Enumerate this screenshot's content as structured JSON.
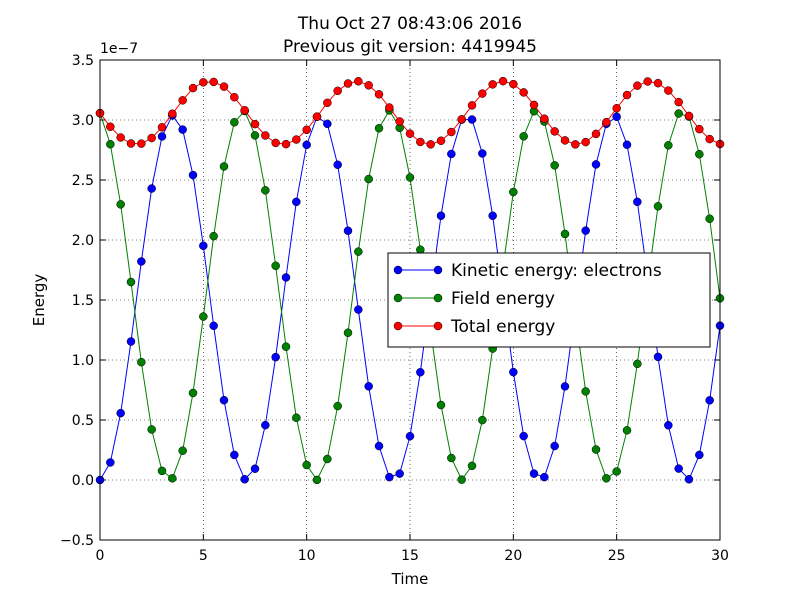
{
  "chart_data": {
    "type": "line",
    "title": "Thu Oct 27 08:43:06 2016",
    "subtitle": "Previous git version: 4419945",
    "xlabel": "Time",
    "ylabel": "Energy",
    "y_offset_label": "1e−7",
    "x": [
      0,
      0.5,
      1,
      1.5,
      2,
      2.5,
      3,
      3.5,
      4,
      4.5,
      5,
      5.5,
      6,
      6.5,
      7,
      7.5,
      8,
      8.5,
      9,
      9.5,
      10,
      10.5,
      11,
      11.5,
      12,
      12.5,
      13,
      13.5,
      14,
      14.5,
      15,
      15.5,
      16,
      16.5,
      17,
      17.5,
      18,
      18.5,
      19,
      19.5,
      20,
      20.5,
      21,
      21.5,
      22,
      22.5,
      23,
      23.5,
      24,
      24.5,
      25,
      25.5,
      26,
      26.5,
      27,
      27.5,
      28,
      28.5,
      29,
      29.5,
      30
    ],
    "series": [
      {
        "name": "Kinetic energy: electrons",
        "color": "#0000ff",
        "values": [
          0,
          0.146,
          0.557,
          1.154,
          1.821,
          2.429,
          2.863,
          3.038,
          2.92,
          2.541,
          1.952,
          1.285,
          0.665,
          0.209,
          0.006,
          0.094,
          0.457,
          1.024,
          1.688,
          2.318,
          2.793,
          3.027,
          2.968,
          2.627,
          2.077,
          1.42,
          0.781,
          0.283,
          0.024,
          0.053,
          0.365,
          0.898,
          1.554,
          2.202,
          2.717,
          3.003,
          3.004,
          2.721,
          2.202,
          1.554,
          0.899,
          0.366,
          0.053,
          0.024,
          0.283,
          0.78,
          1.419,
          2.078,
          2.63,
          2.968,
          3.027,
          2.794,
          2.318,
          1.688,
          1.026,
          0.456,
          0.095,
          0.006,
          0.209,
          0.664,
          1.286
        ]
      },
      {
        "name": "Field energy",
        "color": "#008000",
        "values": [
          3.057,
          2.798,
          2.297,
          1.65,
          0.982,
          0.421,
          0.076,
          0.014,
          0.244,
          0.725,
          1.362,
          2.032,
          2.613,
          2.981,
          3.075,
          2.872,
          2.414,
          1.785,
          1.111,
          0.519,
          0.125,
          0.001,
          0.175,
          0.616,
          1.227,
          1.903,
          2.508,
          2.931,
          3.08,
          2.935,
          2.521,
          1.919,
          1.243,
          0.625,
          0.183,
          0.003,
          0.118,
          0.499,
          1.095,
          1.77,
          2.4,
          2.864,
          3.073,
          2.987,
          2.622,
          2.05,
          1.378,
          0.738,
          0.254,
          0.014,
          0.071,
          0.414,
          0.968,
          1.633,
          2.281,
          2.789,
          3.054,
          3.028,
          2.715,
          2.177,
          1.514
        ]
      },
      {
        "name": "Total energy",
        "color": "#ff0000",
        "values": [
          3.057,
          2.944,
          2.854,
          2.804,
          2.803,
          2.85,
          2.939,
          3.052,
          3.164,
          3.266,
          3.314,
          3.317,
          3.278,
          3.19,
          3.081,
          2.966,
          2.871,
          2.809,
          2.799,
          2.837,
          2.918,
          3.028,
          3.143,
          3.243,
          3.304,
          3.323,
          3.289,
          3.214,
          3.104,
          2.988,
          2.886,
          2.817,
          2.797,
          2.827,
          2.9,
          3.006,
          3.122,
          3.22,
          3.297,
          3.324,
          3.299,
          3.23,
          3.126,
          3.011,
          2.905,
          2.83,
          2.797,
          2.816,
          2.884,
          2.982,
          3.098,
          3.208,
          3.286,
          3.321,
          3.307,
          3.245,
          3.149,
          3.034,
          2.924,
          2.841,
          2.8
        ]
      }
    ],
    "xlim": [
      0,
      30
    ],
    "ylim": [
      -0.5,
      3.5
    ],
    "xticks": [
      0,
      5,
      10,
      15,
      20,
      25,
      30
    ],
    "yticks": [
      {
        "value": -0.5,
        "label": "−0.5"
      },
      {
        "value": 0,
        "label": "0.0"
      },
      0.5,
      {
        "value": 1,
        "label": "1.0"
      },
      1.5,
      {
        "value": 2,
        "label": "2.0"
      },
      2.5,
      {
        "value": 3,
        "label": "3.0"
      },
      3.5
    ],
    "grid": true,
    "legend": "center right"
  }
}
